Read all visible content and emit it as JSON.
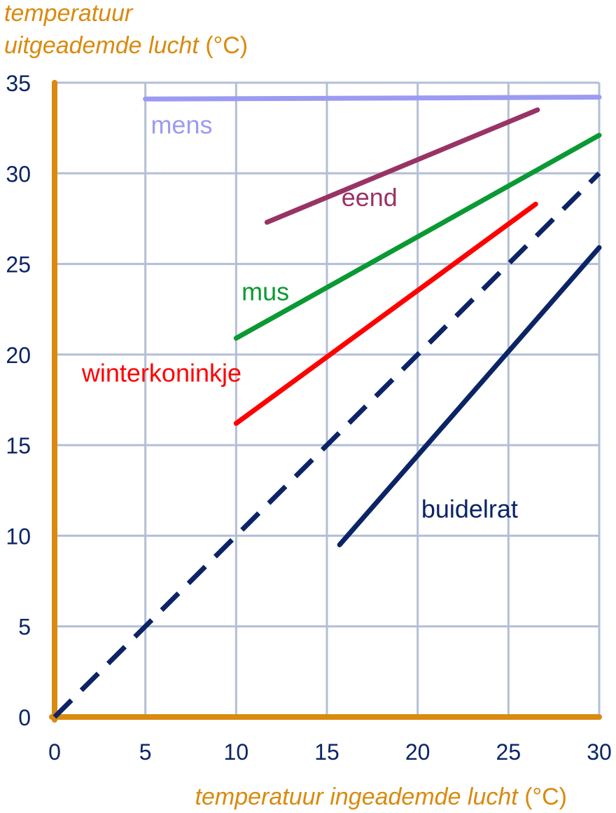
{
  "chart_data": {
    "type": "line",
    "ylabel_lines": [
      "temperatuur",
      "uitgeademde lucht"
    ],
    "ylabel_unit": "(°C)",
    "xlabel": "temperatuur ingeademde lucht",
    "xlabel_unit": "(°C)",
    "xlim": [
      0,
      30
    ],
    "ylim": [
      0,
      35
    ],
    "xticks": [
      0,
      5,
      10,
      15,
      20,
      25,
      30
    ],
    "yticks": [
      0,
      5,
      10,
      15,
      20,
      25,
      30,
      35
    ],
    "grid": true,
    "colors": {
      "axis": "#d98a0f",
      "grid": "#b3bfd6",
      "tick_text": "#0b2466"
    },
    "series": [
      {
        "name": "mens",
        "color": "#9b9bf2",
        "dashed": false,
        "x": [
          5,
          30
        ],
        "y": [
          34.1,
          34.2
        ]
      },
      {
        "name": "eend",
        "color": "#993366",
        "dashed": false,
        "x": [
          11.7,
          26.6
        ],
        "y": [
          27.3,
          33.5
        ]
      },
      {
        "name": "mus",
        "color": "#0a9933",
        "dashed": false,
        "x": [
          10,
          30
        ],
        "y": [
          20.9,
          32.1
        ]
      },
      {
        "name": "winterkoninkje",
        "color": "#ff0000",
        "dashed": false,
        "x": [
          10,
          26.5
        ],
        "y": [
          16.2,
          28.3
        ]
      },
      {
        "name": "",
        "color": "#0b2466",
        "dashed": true,
        "x": [
          0,
          30
        ],
        "y": [
          0,
          30
        ]
      },
      {
        "name": "buidelrat",
        "color": "#0b2466",
        "dashed": false,
        "x": [
          15.7,
          30
        ],
        "y": [
          9.5,
          25.9
        ]
      }
    ]
  }
}
